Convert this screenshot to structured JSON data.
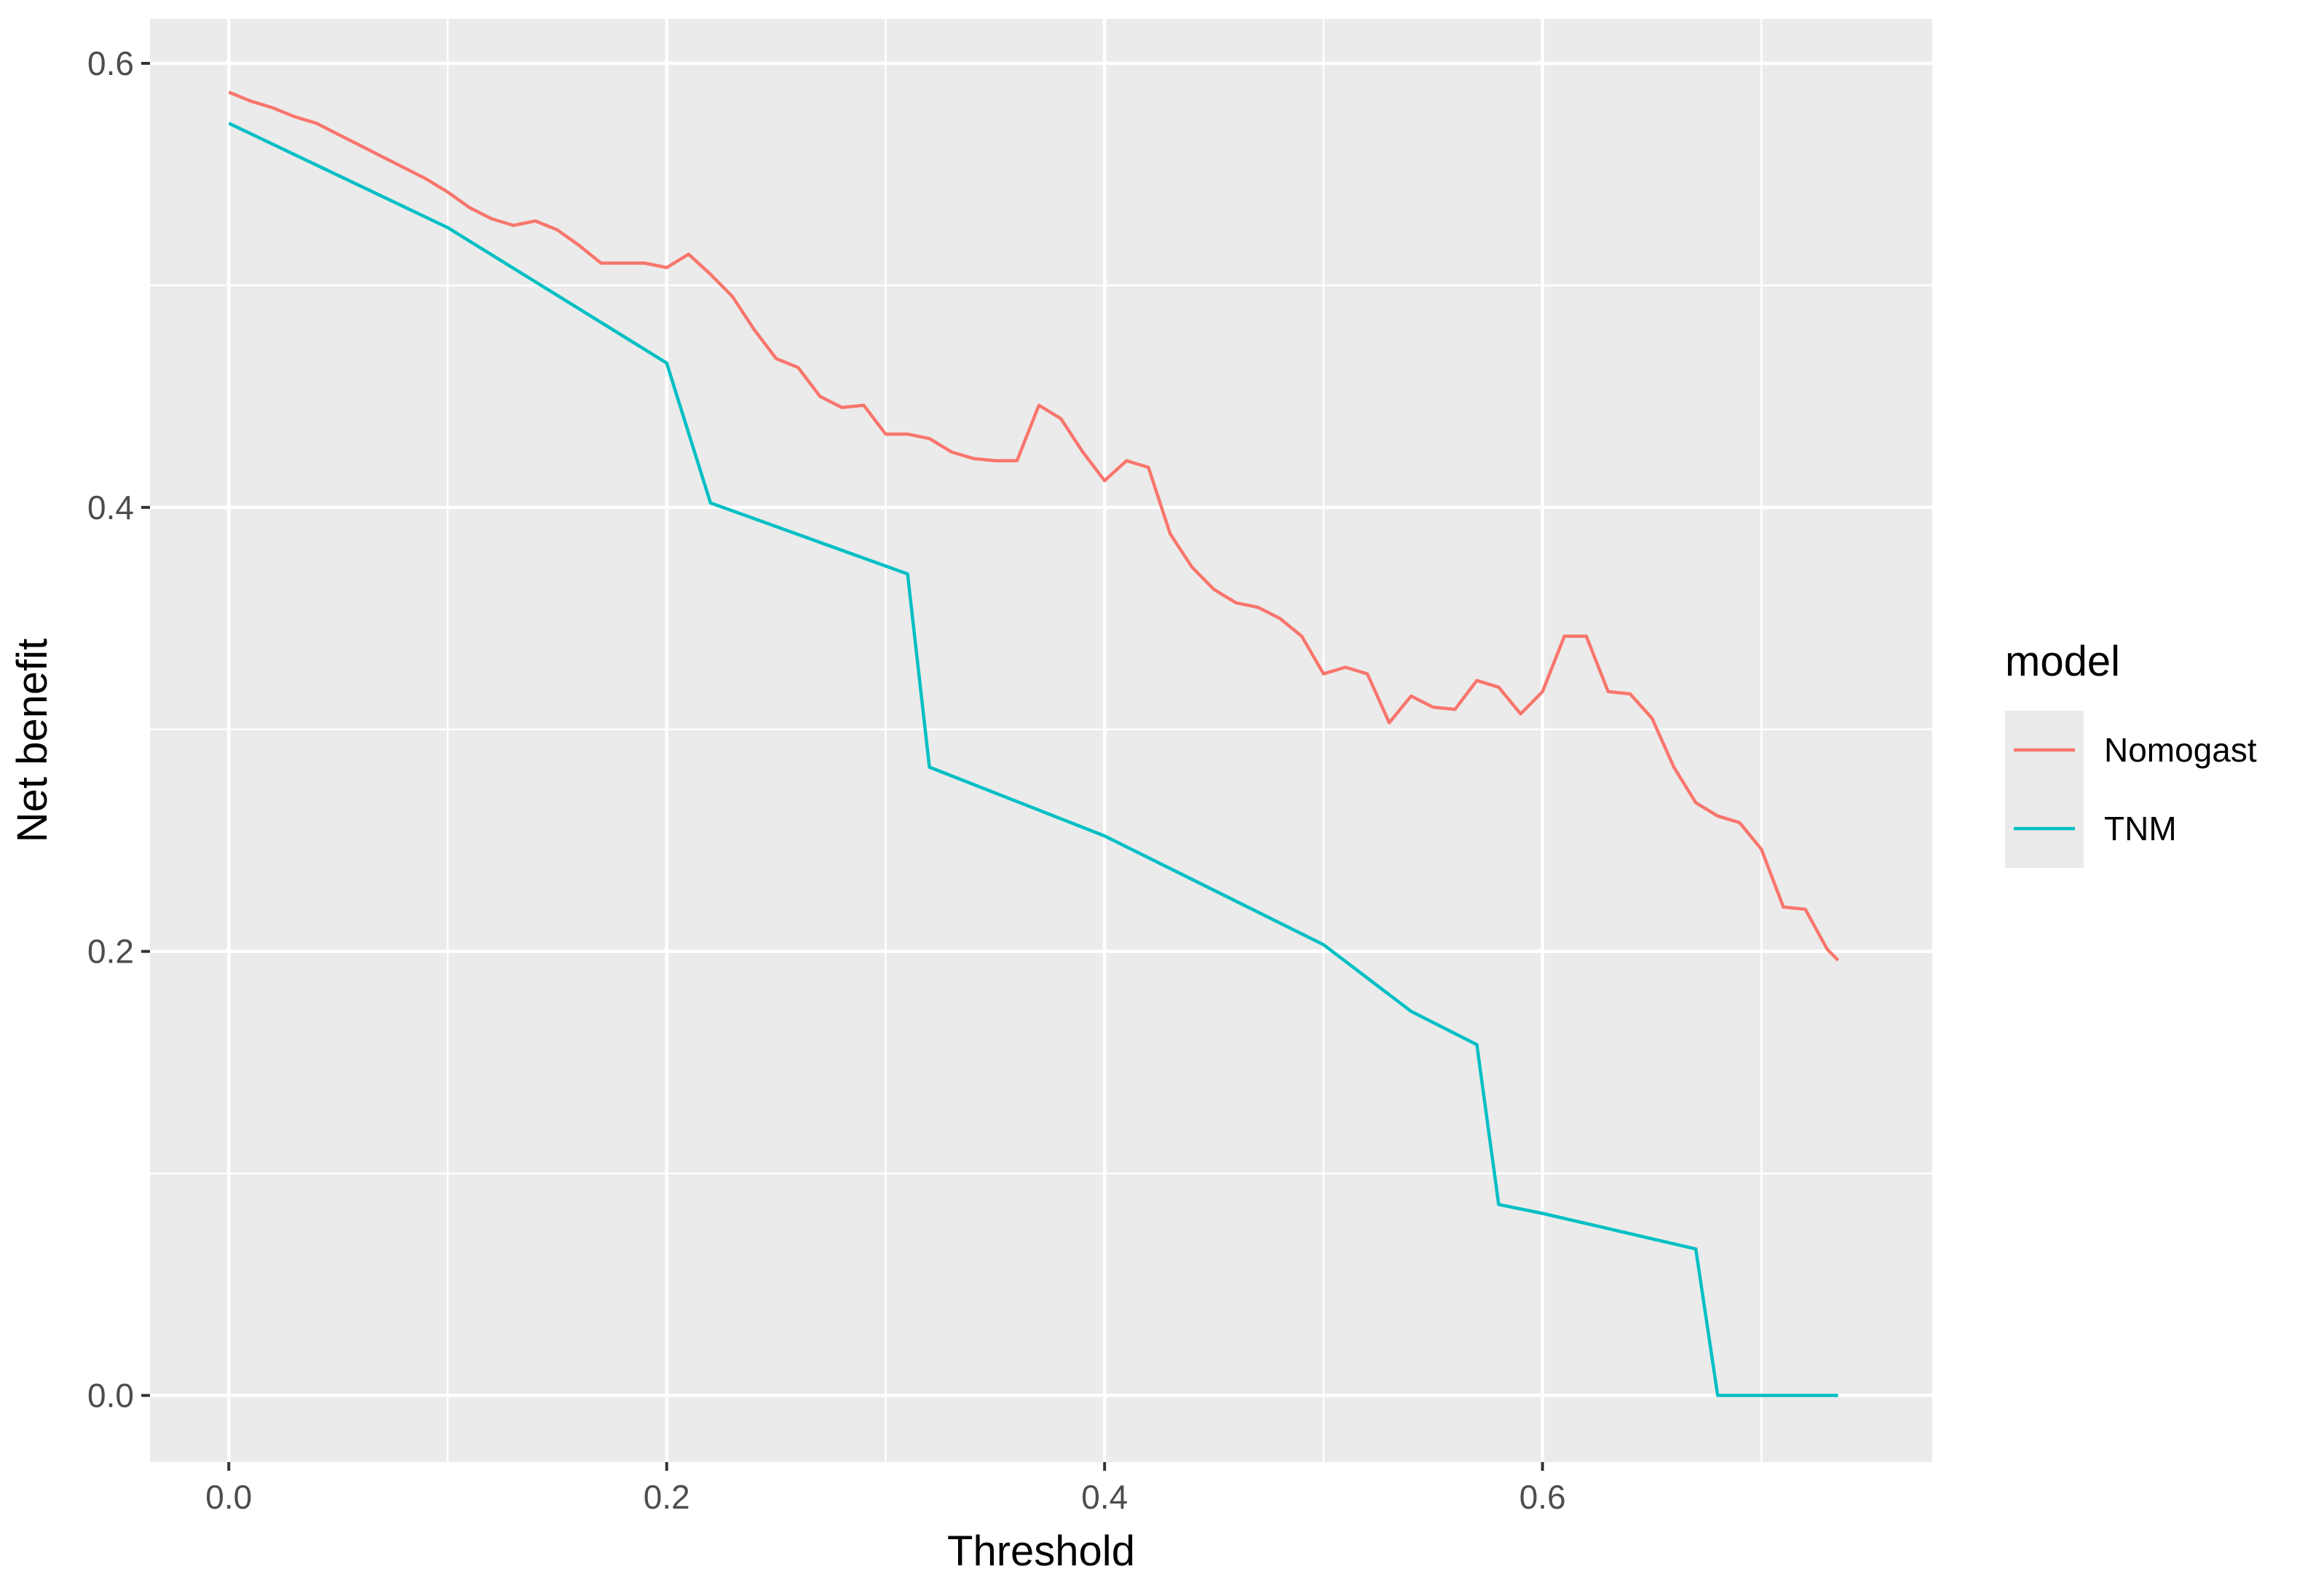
{
  "chart_data": {
    "type": "line",
    "title": "",
    "xlabel": "Threshold",
    "ylabel": "Net benefit",
    "xlim": [
      -0.036,
      0.778
    ],
    "ylim": [
      -0.03,
      0.62
    ],
    "x_ticks": [
      0.0,
      0.2,
      0.4,
      0.6
    ],
    "x_tick_labels": [
      "0.0",
      "0.2",
      "0.4",
      "0.6"
    ],
    "y_ticks": [
      0.0,
      0.2,
      0.4,
      0.6
    ],
    "y_tick_labels": [
      "0.0",
      "0.2",
      "0.4",
      "0.6"
    ],
    "grid": true,
    "legend": {
      "title": "model",
      "position": "right"
    },
    "colors": {
      "panel": "#ebebeb",
      "grid": "#ffffff",
      "axis_text": "#4d4d4d"
    },
    "series": [
      {
        "name": "Nomogast",
        "color": "#F8766D",
        "points": [
          [
            0.0,
            0.587
          ],
          [
            0.01,
            0.583
          ],
          [
            0.02,
            0.58
          ],
          [
            0.03,
            0.576
          ],
          [
            0.04,
            0.573
          ],
          [
            0.05,
            0.568
          ],
          [
            0.06,
            0.563
          ],
          [
            0.07,
            0.558
          ],
          [
            0.08,
            0.553
          ],
          [
            0.09,
            0.548
          ],
          [
            0.1,
            0.542
          ],
          [
            0.11,
            0.535
          ],
          [
            0.12,
            0.53
          ],
          [
            0.13,
            0.527
          ],
          [
            0.14,
            0.529
          ],
          [
            0.15,
            0.525
          ],
          [
            0.16,
            0.518
          ],
          [
            0.17,
            0.51
          ],
          [
            0.18,
            0.51
          ],
          [
            0.19,
            0.51
          ],
          [
            0.2,
            0.508
          ],
          [
            0.21,
            0.514
          ],
          [
            0.22,
            0.505
          ],
          [
            0.23,
            0.495
          ],
          [
            0.24,
            0.48
          ],
          [
            0.25,
            0.467
          ],
          [
            0.26,
            0.463
          ],
          [
            0.27,
            0.45
          ],
          [
            0.28,
            0.445
          ],
          [
            0.29,
            0.446
          ],
          [
            0.3,
            0.433
          ],
          [
            0.31,
            0.433
          ],
          [
            0.32,
            0.431
          ],
          [
            0.33,
            0.425
          ],
          [
            0.34,
            0.422
          ],
          [
            0.35,
            0.421
          ],
          [
            0.36,
            0.421
          ],
          [
            0.37,
            0.446
          ],
          [
            0.38,
            0.44
          ],
          [
            0.39,
            0.425
          ],
          [
            0.4,
            0.412
          ],
          [
            0.41,
            0.421
          ],
          [
            0.42,
            0.418
          ],
          [
            0.43,
            0.388
          ],
          [
            0.44,
            0.373
          ],
          [
            0.45,
            0.363
          ],
          [
            0.46,
            0.357
          ],
          [
            0.47,
            0.355
          ],
          [
            0.48,
            0.35
          ],
          [
            0.49,
            0.342
          ],
          [
            0.5,
            0.325
          ],
          [
            0.51,
            0.328
          ],
          [
            0.52,
            0.325
          ],
          [
            0.53,
            0.303
          ],
          [
            0.54,
            0.315
          ],
          [
            0.55,
            0.31
          ],
          [
            0.56,
            0.309
          ],
          [
            0.57,
            0.322
          ],
          [
            0.58,
            0.319
          ],
          [
            0.59,
            0.307
          ],
          [
            0.6,
            0.317
          ],
          [
            0.61,
            0.342
          ],
          [
            0.62,
            0.342
          ],
          [
            0.63,
            0.317
          ],
          [
            0.64,
            0.316
          ],
          [
            0.65,
            0.305
          ],
          [
            0.66,
            0.283
          ],
          [
            0.67,
            0.267
          ],
          [
            0.68,
            0.261
          ],
          [
            0.69,
            0.258
          ],
          [
            0.7,
            0.246
          ],
          [
            0.71,
            0.22
          ],
          [
            0.72,
            0.219
          ],
          [
            0.73,
            0.201
          ],
          [
            0.735,
            0.196
          ]
        ]
      },
      {
        "name": "TNM",
        "color": "#00BFC4",
        "points": [
          [
            0.0,
            0.573
          ],
          [
            0.1,
            0.526
          ],
          [
            0.2,
            0.465
          ],
          [
            0.22,
            0.402
          ],
          [
            0.31,
            0.37
          ],
          [
            0.32,
            0.283
          ],
          [
            0.4,
            0.252
          ],
          [
            0.5,
            0.203
          ],
          [
            0.54,
            0.173
          ],
          [
            0.57,
            0.158
          ],
          [
            0.58,
            0.086
          ],
          [
            0.6,
            0.082
          ],
          [
            0.67,
            0.066
          ],
          [
            0.68,
            0.0
          ],
          [
            0.735,
            0.0
          ]
        ]
      }
    ]
  }
}
